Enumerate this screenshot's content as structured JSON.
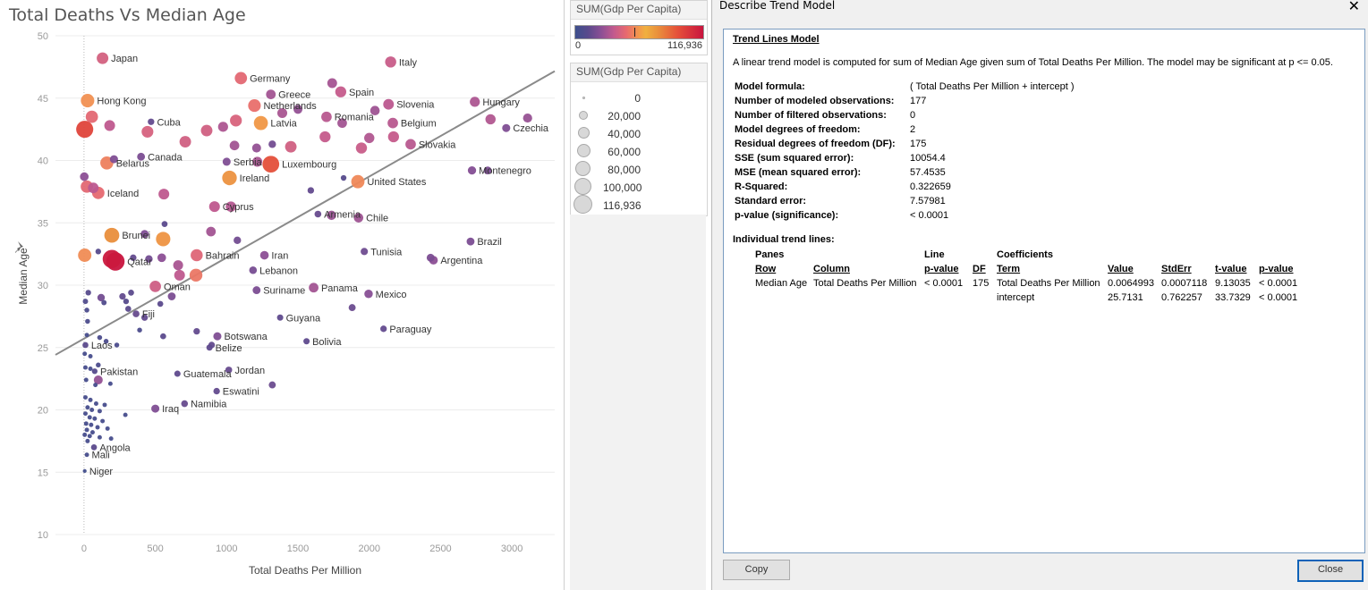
{
  "chart": {
    "title": "Total Deaths Vs Median Age"
  },
  "chart_data": {
    "type": "scatter",
    "title": "Total Deaths Vs Median Age",
    "xlabel": "Total Deaths Per Million",
    "ylabel": "Median Age",
    "xlim": [
      -200,
      3300
    ],
    "ylim": [
      10,
      50
    ],
    "x_ticks": [
      "0",
      "500",
      "1000",
      "1500",
      "2000",
      "2500",
      "3000"
    ],
    "y_ticks": [
      "10",
      "15",
      "20",
      "25",
      "30",
      "35",
      "40",
      "45",
      "50"
    ],
    "grid": true,
    "trend_line": {
      "slope": 0.0064993,
      "intercept": 25.7131
    },
    "color_measure": "SUM(Gdp Per Capita)",
    "size_measure": "SUM(Gdp Per Capita)",
    "points": [
      {
        "label": "Japan",
        "x": 130,
        "y": 48.2,
        "gdp": 39000
      },
      {
        "label": "Italy",
        "x": 2150,
        "y": 47.9,
        "gdp": 35000
      },
      {
        "label": "Germany",
        "x": 1100,
        "y": 46.6,
        "gdp": 45000
      },
      {
        "label": "",
        "x": 1740,
        "y": 46.2,
        "gdp": 25000
      },
      {
        "label": "Greece",
        "x": 1310,
        "y": 45.3,
        "gdp": 24000
      },
      {
        "label": "Spain",
        "x": 1800,
        "y": 45.5,
        "gdp": 34000
      },
      {
        "label": "Hong Kong",
        "x": 25,
        "y": 44.8,
        "gdp": 56000
      },
      {
        "label": "Netherlands",
        "x": 1195,
        "y": 44.4,
        "gdp": 48000
      },
      {
        "label": "Slovenia",
        "x": 2135,
        "y": 44.5,
        "gdp": 31000
      },
      {
        "label": "Hungary",
        "x": 2740,
        "y": 44.7,
        "gdp": 27000
      },
      {
        "label": "",
        "x": 1500,
        "y": 44.1,
        "gdp": 20000
      },
      {
        "label": "",
        "x": 1390,
        "y": 43.8,
        "gdp": 26000
      },
      {
        "label": "",
        "x": 2040,
        "y": 44.0,
        "gdp": 23000
      },
      {
        "label": "",
        "x": 2850,
        "y": 43.3,
        "gdp": 28000
      },
      {
        "label": "",
        "x": 3110,
        "y": 43.4,
        "gdp": 21000
      },
      {
        "label": "Cuba",
        "x": 470,
        "y": 43.1,
        "gdp": 8000
      },
      {
        "label": "",
        "x": 55,
        "y": 43.5,
        "gdp": 45000
      },
      {
        "label": "",
        "x": 180,
        "y": 42.8,
        "gdp": 32000
      },
      {
        "label": "",
        "x": 5,
        "y": 42.5,
        "gdp": 98000
      },
      {
        "label": "",
        "x": 445,
        "y": 42.3,
        "gdp": 40000
      },
      {
        "label": "",
        "x": 860,
        "y": 42.4,
        "gdp": 38000
      },
      {
        "label": "",
        "x": 975,
        "y": 42.7,
        "gdp": 27000
      },
      {
        "label": "",
        "x": 1065,
        "y": 43.2,
        "gdp": 41000
      },
      {
        "label": "Latvia",
        "x": 1240,
        "y": 43.0,
        "gdp": 62000
      },
      {
        "label": "Romania",
        "x": 1700,
        "y": 43.5,
        "gdp": 30000
      },
      {
        "label": "",
        "x": 1810,
        "y": 43.0,
        "gdp": 24000
      },
      {
        "label": "Belgium",
        "x": 2165,
        "y": 43.0,
        "gdp": 30000
      },
      {
        "label": "Czechia",
        "x": 2960,
        "y": 42.6,
        "gdp": 15000
      },
      {
        "label": "",
        "x": 1690,
        "y": 41.9,
        "gdp": 34000
      },
      {
        "label": "",
        "x": 2000,
        "y": 41.8,
        "gdp": 28000
      },
      {
        "label": "",
        "x": 2170,
        "y": 41.9,
        "gdp": 34000
      },
      {
        "label": "",
        "x": 710,
        "y": 41.5,
        "gdp": 38000
      },
      {
        "label": "",
        "x": 1055,
        "y": 41.2,
        "gdp": 24000
      },
      {
        "label": "",
        "x": 1210,
        "y": 41.0,
        "gdp": 20000
      },
      {
        "label": "",
        "x": 1320,
        "y": 41.3,
        "gdp": 12000
      },
      {
        "label": "",
        "x": 1450,
        "y": 41.1,
        "gdp": 38000
      },
      {
        "label": "",
        "x": 1945,
        "y": 41.0,
        "gdp": 35000
      },
      {
        "label": "Slovakia",
        "x": 2290,
        "y": 41.3,
        "gdp": 30000
      },
      {
        "label": "Canada",
        "x": 400,
        "y": 40.3,
        "gdp": 14000
      },
      {
        "label": "Serbia",
        "x": 1000,
        "y": 39.9,
        "gdp": 15000
      },
      {
        "label": "",
        "x": 1215,
        "y": 39.9,
        "gdp": 26000
      },
      {
        "label": "Luxembourg",
        "x": 1310,
        "y": 39.7,
        "gdp": 94000
      },
      {
        "label": "Belarus",
        "x": 160,
        "y": 39.8,
        "gdp": 52000
      },
      {
        "label": "",
        "x": 210,
        "y": 40.1,
        "gdp": 15000
      },
      {
        "label": "Montenegro",
        "x": 2720,
        "y": 39.2,
        "gdp": 16000
      },
      {
        "label": "",
        "x": 2830,
        "y": 39.2,
        "gdp": 14000
      },
      {
        "label": "",
        "x": 2,
        "y": 38.7,
        "gdp": 18000
      },
      {
        "label": "Ireland",
        "x": 1020,
        "y": 38.6,
        "gdp": 68000
      },
      {
        "label": "United States",
        "x": 1920,
        "y": 38.3,
        "gdp": 54000
      },
      {
        "label": "",
        "x": 1820,
        "y": 38.6,
        "gdp": 5000
      },
      {
        "label": "",
        "x": 20,
        "y": 37.9,
        "gdp": 45000
      },
      {
        "label": "",
        "x": 65,
        "y": 37.8,
        "gdp": 31000
      },
      {
        "label": "Iceland",
        "x": 100,
        "y": 37.4,
        "gdp": 46000
      },
      {
        "label": "",
        "x": 560,
        "y": 37.3,
        "gdp": 32000
      },
      {
        "label": "",
        "x": 1590,
        "y": 37.6,
        "gdp": 8000
      },
      {
        "label": "Cyprus",
        "x": 915,
        "y": 36.3,
        "gdp": 32000
      },
      {
        "label": "",
        "x": 1030,
        "y": 36.3,
        "gdp": 29000
      },
      {
        "label": "Armenia",
        "x": 1640,
        "y": 35.7,
        "gdp": 9000
      },
      {
        "label": "",
        "x": 1735,
        "y": 35.6,
        "gdp": 22000
      },
      {
        "label": "Chile",
        "x": 1925,
        "y": 35.4,
        "gdp": 23000
      },
      {
        "label": "",
        "x": 565,
        "y": 34.9,
        "gdp": 6000
      },
      {
        "label": "Brunei",
        "x": 195,
        "y": 34.0,
        "gdp": 72000
      },
      {
        "label": "",
        "x": 425,
        "y": 34.1,
        "gdp": 15000
      },
      {
        "label": "",
        "x": 555,
        "y": 33.7,
        "gdp": 66000
      },
      {
        "label": "",
        "x": 890,
        "y": 34.3,
        "gdp": 24000
      },
      {
        "label": "",
        "x": 1075,
        "y": 33.6,
        "gdp": 12000
      },
      {
        "label": "Brazil",
        "x": 2710,
        "y": 33.5,
        "gdp": 14000
      },
      {
        "label": "",
        "x": 100,
        "y": 32.7,
        "gdp": 5000
      },
      {
        "label": "",
        "x": 5,
        "y": 32.4,
        "gdp": 55000
      },
      {
        "label": "",
        "x": 195,
        "y": 32.1,
        "gdp": 115000
      },
      {
        "label": "Qatar",
        "x": 220,
        "y": 31.9,
        "gdp": 116936
      },
      {
        "label": "",
        "x": 345,
        "y": 32.2,
        "gdp": 8000
      },
      {
        "label": "",
        "x": 455,
        "y": 32.1,
        "gdp": 12000
      },
      {
        "label": "Bahrain",
        "x": 790,
        "y": 32.4,
        "gdp": 43000
      },
      {
        "label": "Iran",
        "x": 1265,
        "y": 32.4,
        "gdp": 18000
      },
      {
        "label": "Tunisia",
        "x": 1965,
        "y": 32.7,
        "gdp": 11000
      },
      {
        "label": "",
        "x": 2430,
        "y": 32.2,
        "gdp": 14000
      },
      {
        "label": "Argentina",
        "x": 2450,
        "y": 32.0,
        "gdp": 18000
      },
      {
        "label": "",
        "x": 545,
        "y": 32.2,
        "gdp": 18000
      },
      {
        "label": "Lebanon",
        "x": 1185,
        "y": 31.2,
        "gdp": 13000
      },
      {
        "label": "",
        "x": 660,
        "y": 31.6,
        "gdp": 26000
      },
      {
        "label": "",
        "x": 670,
        "y": 30.8,
        "gdp": 32000
      },
      {
        "label": "",
        "x": 785,
        "y": 30.8,
        "gdp": 50000
      },
      {
        "label": "Oman",
        "x": 500,
        "y": 29.9,
        "gdp": 37000
      },
      {
        "label": "",
        "x": 30,
        "y": 29.4,
        "gdp": 5000
      },
      {
        "label": "",
        "x": 120,
        "y": 29.0,
        "gdp": 12000
      },
      {
        "label": "",
        "x": 270,
        "y": 29.1,
        "gdp": 8000
      },
      {
        "label": "",
        "x": 330,
        "y": 29.4,
        "gdp": 6000
      },
      {
        "label": "Suriname",
        "x": 1210,
        "y": 29.6,
        "gdp": 14000
      },
      {
        "label": "Panama",
        "x": 1610,
        "y": 29.8,
        "gdp": 24000
      },
      {
        "label": "Mexico",
        "x": 1995,
        "y": 29.3,
        "gdp": 17000
      },
      {
        "label": "",
        "x": 615,
        "y": 29.1,
        "gdp": 14000
      },
      {
        "label": "",
        "x": 10,
        "y": 28.7,
        "gdp": 4000
      },
      {
        "label": "",
        "x": 140,
        "y": 28.6,
        "gdp": 4000
      },
      {
        "label": "",
        "x": 295,
        "y": 28.7,
        "gdp": 5000
      },
      {
        "label": "",
        "x": 535,
        "y": 28.5,
        "gdp": 6000
      },
      {
        "label": "",
        "x": 1880,
        "y": 28.2,
        "gdp": 10000
      },
      {
        "label": "",
        "x": 20,
        "y": 28.0,
        "gdp": 3000
      },
      {
        "label": "",
        "x": 310,
        "y": 28.1,
        "gdp": 6000
      },
      {
        "label": "Fiji",
        "x": 365,
        "y": 27.7,
        "gdp": 9000
      },
      {
        "label": "",
        "x": 425,
        "y": 27.4,
        "gdp": 8000
      },
      {
        "label": "Guyana",
        "x": 1375,
        "y": 27.4,
        "gdp": 7000
      },
      {
        "label": "",
        "x": 25,
        "y": 27.1,
        "gdp": 3000
      },
      {
        "label": "",
        "x": 390,
        "y": 26.4,
        "gdp": 3000
      },
      {
        "label": "Paraguay",
        "x": 2100,
        "y": 26.5,
        "gdp": 8000
      },
      {
        "label": "",
        "x": 790,
        "y": 26.3,
        "gdp": 8000
      },
      {
        "label": "",
        "x": 20,
        "y": 26.0,
        "gdp": 2000
      },
      {
        "label": "",
        "x": 555,
        "y": 25.9,
        "gdp": 6000
      },
      {
        "label": "Botswana",
        "x": 935,
        "y": 25.9,
        "gdp": 15000
      },
      {
        "label": "",
        "x": 110,
        "y": 25.8,
        "gdp": 3000
      },
      {
        "label": "",
        "x": 155,
        "y": 25.5,
        "gdp": 3000
      },
      {
        "label": "Laos",
        "x": 10,
        "y": 25.2,
        "gdp": 6000
      },
      {
        "label": "",
        "x": 230,
        "y": 25.2,
        "gdp": 3000
      },
      {
        "label": "",
        "x": 895,
        "y": 25.2,
        "gdp": 8000
      },
      {
        "label": "Bolivia",
        "x": 1560,
        "y": 25.5,
        "gdp": 7000
      },
      {
        "label": "",
        "x": 5,
        "y": 24.5,
        "gdp": 2000
      },
      {
        "label": "",
        "x": 45,
        "y": 24.3,
        "gdp": 2000
      },
      {
        "label": "Belize",
        "x": 880,
        "y": 25.0,
        "gdp": 7000
      },
      {
        "label": "",
        "x": 100,
        "y": 23.6,
        "gdp": 3000
      },
      {
        "label": "",
        "x": 10,
        "y": 23.4,
        "gdp": 2000
      },
      {
        "label": "",
        "x": 45,
        "y": 23.3,
        "gdp": 2000
      },
      {
        "label": "Pakistan",
        "x": 75,
        "y": 23.1,
        "gdp": 5000
      },
      {
        "label": "Jordan",
        "x": 1015,
        "y": 23.2,
        "gdp": 9000
      },
      {
        "label": "",
        "x": 100,
        "y": 22.4,
        "gdp": 20000
      },
      {
        "label": "",
        "x": 15,
        "y": 22.4,
        "gdp": 2000
      },
      {
        "label": "",
        "x": 185,
        "y": 22.1,
        "gdp": 2000
      },
      {
        "label": "",
        "x": 80,
        "y": 22.0,
        "gdp": 2000
      },
      {
        "label": "Guatemala",
        "x": 655,
        "y": 22.9,
        "gdp": 7000
      },
      {
        "label": "",
        "x": 1320,
        "y": 22.0,
        "gdp": 10000
      },
      {
        "label": "Eswatini",
        "x": 930,
        "y": 21.5,
        "gdp": 8000
      },
      {
        "label": "Namibia",
        "x": 705,
        "y": 20.5,
        "gdp": 9000
      },
      {
        "label": "Iraq",
        "x": 500,
        "y": 20.1,
        "gdp": 15000
      },
      {
        "label": "",
        "x": 10,
        "y": 21.0,
        "gdp": 2000
      },
      {
        "label": "",
        "x": 45,
        "y": 20.8,
        "gdp": 2000
      },
      {
        "label": "",
        "x": 85,
        "y": 20.5,
        "gdp": 2000
      },
      {
        "label": "",
        "x": 145,
        "y": 20.4,
        "gdp": 2000
      },
      {
        "label": "",
        "x": 25,
        "y": 20.2,
        "gdp": 2000
      },
      {
        "label": "",
        "x": 55,
        "y": 20.0,
        "gdp": 2000
      },
      {
        "label": "",
        "x": 110,
        "y": 19.9,
        "gdp": 2000
      },
      {
        "label": "",
        "x": 290,
        "y": 19.6,
        "gdp": 2000
      },
      {
        "label": "",
        "x": 10,
        "y": 19.7,
        "gdp": 2000
      },
      {
        "label": "",
        "x": 40,
        "y": 19.4,
        "gdp": 2000
      },
      {
        "label": "",
        "x": 75,
        "y": 19.3,
        "gdp": 2000
      },
      {
        "label": "",
        "x": 130,
        "y": 19.1,
        "gdp": 2000
      },
      {
        "label": "",
        "x": 15,
        "y": 18.9,
        "gdp": 2000
      },
      {
        "label": "",
        "x": 50,
        "y": 18.8,
        "gdp": 2000
      },
      {
        "label": "",
        "x": 95,
        "y": 18.6,
        "gdp": 2000
      },
      {
        "label": "",
        "x": 165,
        "y": 18.5,
        "gdp": 2000
      },
      {
        "label": "",
        "x": 20,
        "y": 18.4,
        "gdp": 2000
      },
      {
        "label": "",
        "x": 60,
        "y": 18.2,
        "gdp": 2000
      },
      {
        "label": "",
        "x": 5,
        "y": 18.0,
        "gdp": 2000
      },
      {
        "label": "",
        "x": 40,
        "y": 17.9,
        "gdp": 2000
      },
      {
        "label": "",
        "x": 110,
        "y": 17.8,
        "gdp": 2000
      },
      {
        "label": "",
        "x": 190,
        "y": 17.7,
        "gdp": 2000
      },
      {
        "label": "",
        "x": 25,
        "y": 17.5,
        "gdp": 2000
      },
      {
        "label": "Angola",
        "x": 70,
        "y": 17.0,
        "gdp": 6000
      },
      {
        "label": "Mali",
        "x": 20,
        "y": 16.4,
        "gdp": 2000
      },
      {
        "label": "Niger",
        "x": 5,
        "y": 15.1,
        "gdp": 1000
      }
    ]
  },
  "color_legend": {
    "title": "SUM(Gdp Per Capita)",
    "min": "0",
    "max": "116,936"
  },
  "size_legend": {
    "title": "SUM(Gdp Per Capita)",
    "items": [
      "0",
      "20,000",
      "40,000",
      "60,000",
      "80,000",
      "100,000",
      "116,936"
    ]
  },
  "dialog": {
    "title": "Describe Trend Model",
    "close_glyph": "✕",
    "header": "Trend Lines Model",
    "description": "A linear trend model is computed for sum of Median Age given sum of Total Deaths Per Million.  The model may be significant at p <= 0.05.",
    "stats": [
      {
        "k": "Model formula:",
        "v": "( Total Deaths Per Million + intercept )"
      },
      {
        "k": "Number of modeled observations:",
        "v": "177"
      },
      {
        "k": "Number of filtered observations:",
        "v": "0"
      },
      {
        "k": "Model degrees of freedom:",
        "v": "2"
      },
      {
        "k": "Residual degrees of freedom (DF):",
        "v": "175"
      },
      {
        "k": "SSE (sum squared error):",
        "v": "10054.4"
      },
      {
        "k": "MSE (mean squared error):",
        "v": "57.4535"
      },
      {
        "k": "R-Squared:",
        "v": "0.322659"
      },
      {
        "k": "Standard error:",
        "v": "7.57981"
      },
      {
        "k": "p-value (significance):",
        "v": "< 0.0001"
      }
    ],
    "individual_title": "Individual trend lines:",
    "table": {
      "group_panes": "Panes",
      "group_line": "Line",
      "group_coeff": "Coefficients",
      "col_row": "Row",
      "col_column": "Column",
      "col_pvalue": "p-value",
      "col_df": "DF",
      "col_term": "Term",
      "col_value": "Value",
      "col_stderr": "StdErr",
      "col_tvalue": "t-value",
      "col_pvalue2": "p-value",
      "row_label": "Median Age",
      "column_label": "Total Deaths Per Million",
      "line_pvalue": "< 0.0001",
      "df": "175",
      "terms": [
        {
          "term": "Total Deaths Per Million",
          "value": "0.0064993",
          "stderr": "0.0007118",
          "tvalue": "9.13035",
          "pvalue": "< 0.0001"
        },
        {
          "term": "intercept",
          "value": "25.7131",
          "stderr": "0.762257",
          "tvalue": "33.7329",
          "pvalue": "< 0.0001"
        }
      ]
    },
    "copy_label": "Copy",
    "close_label": "Close"
  }
}
